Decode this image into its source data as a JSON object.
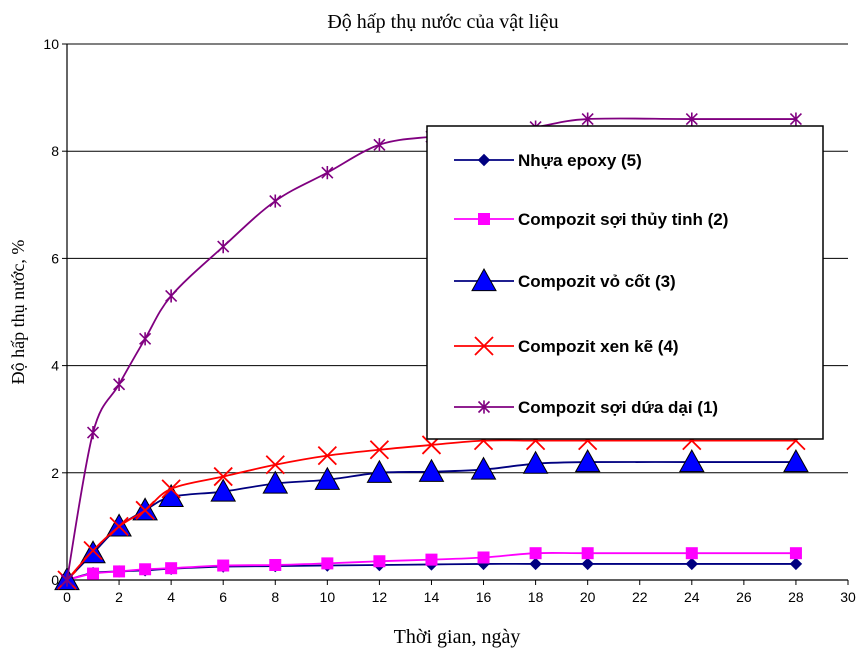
{
  "chart_data": {
    "type": "line",
    "title": "Độ hấp thụ nước của vật liệu",
    "xlabel": "Thời gian, ngày",
    "ylabel": "Độ hấp thụ nước, %",
    "xlim": [
      0,
      30
    ],
    "ylim": [
      0,
      10
    ],
    "xticks": [
      "0",
      "2",
      "4",
      "6",
      "8",
      "10",
      "12",
      "14",
      "16",
      "18",
      "20",
      "22",
      "24",
      "26",
      "28",
      "30"
    ],
    "yticks": [
      "0",
      "2",
      "4",
      "6",
      "8",
      "10"
    ],
    "grid": "horizontal",
    "legend_position": "right",
    "series": [
      {
        "name": "Nhựa epoxy (5)",
        "color": "#000080",
        "marker": "diamond",
        "points": [
          [
            0,
            0
          ],
          [
            1,
            0.13
          ],
          [
            2,
            0.16
          ],
          [
            3,
            0.18
          ],
          [
            4,
            0.21
          ],
          [
            6,
            0.25
          ],
          [
            8,
            0.26
          ],
          [
            10,
            0.27
          ],
          [
            12,
            0.28
          ],
          [
            14,
            0.29
          ],
          [
            16,
            0.3
          ],
          [
            18,
            0.3
          ],
          [
            20,
            0.3
          ],
          [
            24,
            0.3
          ],
          [
            28,
            0.3
          ]
        ]
      },
      {
        "name": "Compozit sợi thủy tinh (2)",
        "color": "#ff00ff",
        "marker": "square",
        "points": [
          [
            0,
            0
          ],
          [
            1,
            0.12
          ],
          [
            2,
            0.16
          ],
          [
            3,
            0.2
          ],
          [
            4,
            0.22
          ],
          [
            6,
            0.27
          ],
          [
            8,
            0.28
          ],
          [
            10,
            0.31
          ],
          [
            12,
            0.35
          ],
          [
            14,
            0.38
          ],
          [
            16,
            0.42
          ],
          [
            18,
            0.5
          ],
          [
            20,
            0.5
          ],
          [
            24,
            0.5
          ],
          [
            28,
            0.5
          ]
        ]
      },
      {
        "name": "Compozit vỏ cốt (3)",
        "color": "#000080",
        "marker": "triangle",
        "marker_color": "#0000ff",
        "points": [
          [
            0,
            0
          ],
          [
            1,
            0.5
          ],
          [
            2,
            1.0
          ],
          [
            3,
            1.3
          ],
          [
            4,
            1.55
          ],
          [
            6,
            1.65
          ],
          [
            8,
            1.8
          ],
          [
            10,
            1.87
          ],
          [
            12,
            2.0
          ],
          [
            14,
            2.02
          ],
          [
            16,
            2.06
          ],
          [
            18,
            2.17
          ],
          [
            20,
            2.2
          ],
          [
            24,
            2.2
          ],
          [
            28,
            2.2
          ]
        ]
      },
      {
        "name": "Compozit xen kẽ (4)",
        "color": "#ff0000",
        "marker": "x",
        "points": [
          [
            0,
            0
          ],
          [
            1,
            0.55
          ],
          [
            2,
            1.0
          ],
          [
            3,
            1.3
          ],
          [
            4,
            1.7
          ],
          [
            6,
            1.93
          ],
          [
            8,
            2.15
          ],
          [
            10,
            2.32
          ],
          [
            12,
            2.43
          ],
          [
            14,
            2.52
          ],
          [
            16,
            2.6
          ],
          [
            18,
            2.6
          ],
          [
            20,
            2.6
          ],
          [
            24,
            2.6
          ],
          [
            28,
            2.6
          ]
        ]
      },
      {
        "name": "Compozit sợi dứa dại (1)",
        "color": "#800080",
        "marker": "star",
        "points": [
          [
            0,
            0
          ],
          [
            1,
            2.75
          ],
          [
            2,
            3.65
          ],
          [
            3,
            4.5
          ],
          [
            4,
            5.3
          ],
          [
            6,
            6.22
          ],
          [
            8,
            7.07
          ],
          [
            10,
            7.6
          ],
          [
            12,
            8.12
          ],
          [
            14,
            8.27
          ],
          [
            16,
            8.33
          ],
          [
            18,
            8.45
          ],
          [
            20,
            8.6
          ],
          [
            24,
            8.6
          ],
          [
            28,
            8.6
          ]
        ]
      }
    ]
  }
}
